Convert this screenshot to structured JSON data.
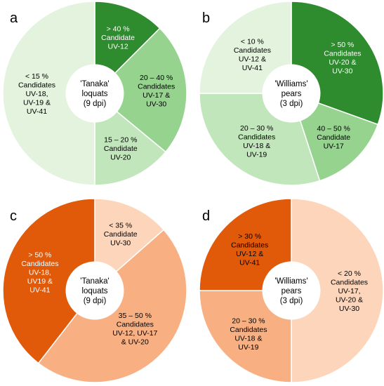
{
  "chart_data": [
    {
      "type": "pie",
      "panel": "a",
      "center_lines": [
        "'Tanaka'",
        "loquats",
        "(9 dpi)"
      ],
      "slices": [
        {
          "label_lines": [
            "> 40 %",
            "Candidate",
            "UV-12"
          ],
          "value": 0.125,
          "color": "#2e8b2e",
          "text_color": "#ffffff"
        },
        {
          "label_lines": [
            "20 – 40 %",
            "Candidates",
            "UV-17 &",
            "UV-30"
          ],
          "value": 0.235,
          "color": "#95d38f",
          "text_color": "#000000"
        },
        {
          "label_lines": [
            "15 – 20 %",
            "Candidate",
            "UV-20"
          ],
          "value": 0.14,
          "color": "#c2e6bc",
          "text_color": "#000000"
        },
        {
          "label_lines": [
            "< 15 %",
            "Candidates",
            "UV-18,",
            "UV-19 &",
            "UV-41"
          ],
          "value": 0.5,
          "color": "#e3f3de",
          "text_color": "#000000"
        }
      ]
    },
    {
      "type": "pie",
      "panel": "b",
      "center_lines": [
        "'Williams'",
        "pears",
        "(3 dpi)"
      ],
      "slices": [
        {
          "label_lines": [
            "> 50 %",
            "Candidates",
            "UV-20 &",
            "UV-30"
          ],
          "value": 0.305,
          "color": "#2e8b2e",
          "text_color": "#ffffff"
        },
        {
          "label_lines": [
            "40 – 50 %",
            "Candidate",
            "UV-17"
          ],
          "value": 0.145,
          "color": "#95d38f",
          "text_color": "#000000"
        },
        {
          "label_lines": [
            "20 – 30 %",
            "Candidates",
            "UV-18 &",
            "UV-19"
          ],
          "value": 0.3,
          "color": "#c2e6bc",
          "text_color": "#000000"
        },
        {
          "label_lines": [
            "< 10 %",
            "Candidates",
            "UV-12 &",
            "UV-41"
          ],
          "value": 0.25,
          "color": "#e3f3de",
          "text_color": "#000000"
        }
      ]
    },
    {
      "type": "pie",
      "panel": "c",
      "center_lines": [
        "'Tanaka'",
        "loquats",
        "(9 dpi)"
      ],
      "slices": [
        {
          "label_lines": [
            "< 35 %",
            "Candidate",
            "UV-30"
          ],
          "value": 0.135,
          "color": "#fdd5bb",
          "text_color": "#000000"
        },
        {
          "label_lines": [
            "35 – 50 %",
            "Candidates",
            "UV-12, UV-17",
            "& UV-20"
          ],
          "value": 0.47,
          "color": "#f8b083",
          "text_color": "#000000"
        },
        {
          "label_lines": [
            "> 50 %",
            "Candidates",
            "UV-18,",
            "UV19 &",
            "UV-41"
          ],
          "value": 0.395,
          "color": "#e05a0a",
          "text_color": "#ffffff"
        }
      ]
    },
    {
      "type": "pie",
      "panel": "d",
      "center_lines": [
        "'Williams'",
        "pears",
        "(3 dpi)"
      ],
      "slices": [
        {
          "label_lines": [
            "< 20 %",
            "Candidates",
            "UV-17,",
            "UV-20 &",
            "UV-30"
          ],
          "value": 0.5,
          "color": "#fdd5bb",
          "text_color": "#000000"
        },
        {
          "label_lines": [
            "20 – 30 %",
            "Candidates",
            "UV-18 &",
            "UV-19"
          ],
          "value": 0.25,
          "color": "#f8b083",
          "text_color": "#000000"
        },
        {
          "label_lines": [
            "> 30 %",
            "Candidates",
            "UV-12 &",
            "UV-41"
          ],
          "value": 0.25,
          "color": "#e05a0a",
          "text_color": "#000000"
        }
      ]
    }
  ]
}
